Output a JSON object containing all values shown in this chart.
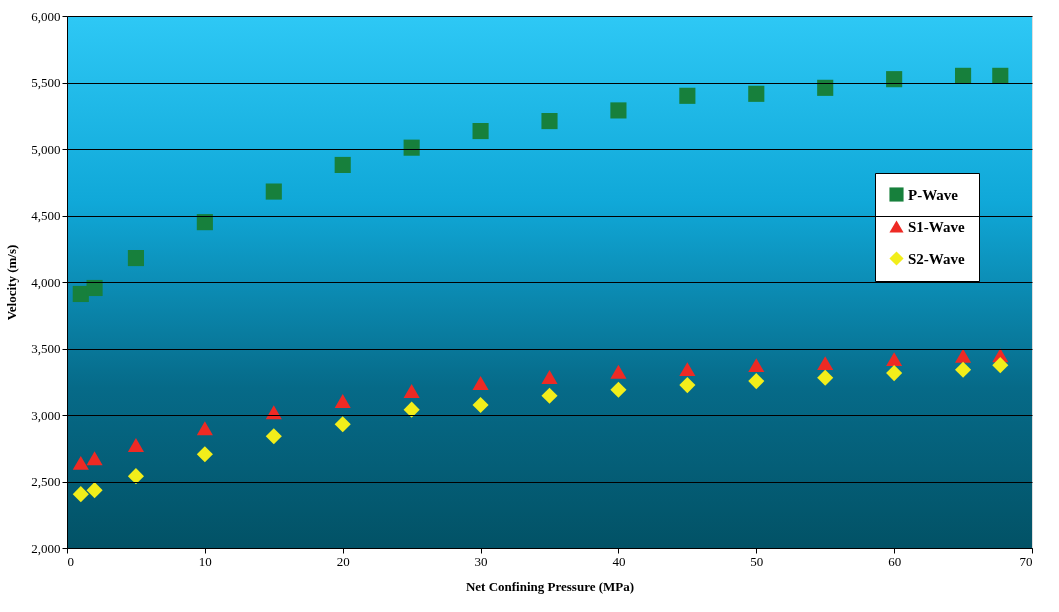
{
  "chart_data": {
    "type": "scatter",
    "xlabel": "Net Confining Pressure (MPa)",
    "ylabel": "Velocity (m/s)",
    "x": [
      1,
      2,
      5,
      10,
      15,
      20,
      25,
      30,
      35,
      40,
      45,
      50,
      55,
      60,
      65,
      67.7
    ],
    "series": [
      {
        "name": "P-Wave",
        "color": "#17803c",
        "marker": "square",
        "values": [
          3910,
          3955,
          4180,
          4450,
          4680,
          4880,
          5010,
          5135,
          5210,
          5290,
          5400,
          5415,
          5460,
          5525,
          5550,
          5550
        ]
      },
      {
        "name": "S1-Wave",
        "color": "#ee2a24",
        "marker": "triangle",
        "values": [
          2640,
          2675,
          2775,
          2900,
          3020,
          3105,
          3180,
          3240,
          3285,
          3325,
          3345,
          3375,
          3390,
          3420,
          3445,
          3450
        ]
      },
      {
        "name": "S2-Wave",
        "color": "#f2ee1a",
        "marker": "diamond",
        "values": [
          2405,
          2435,
          2540,
          2705,
          2840,
          2930,
          3040,
          3075,
          3145,
          3190,
          3225,
          3255,
          3280,
          3315,
          3340,
          3375
        ]
      }
    ],
    "xlim": [
      0,
      70
    ],
    "xticks": [
      0,
      10,
      20,
      30,
      40,
      50,
      60,
      70
    ],
    "ylim": [
      2000,
      6000
    ],
    "yticks": [
      {
        "value": 2000,
        "label": "2,000"
      },
      {
        "value": 2500,
        "label": "2,500"
      },
      {
        "value": 3000,
        "label": "3,000"
      },
      {
        "value": 3500,
        "label": "3,500"
      },
      {
        "value": 4000,
        "label": "4,000"
      },
      {
        "value": 4500,
        "label": "4,500"
      },
      {
        "value": 5000,
        "label": "5,000"
      },
      {
        "value": 5500,
        "label": "5,500"
      },
      {
        "value": 6000,
        "label": "6,000"
      }
    ],
    "grid": "y",
    "legend": "right"
  }
}
